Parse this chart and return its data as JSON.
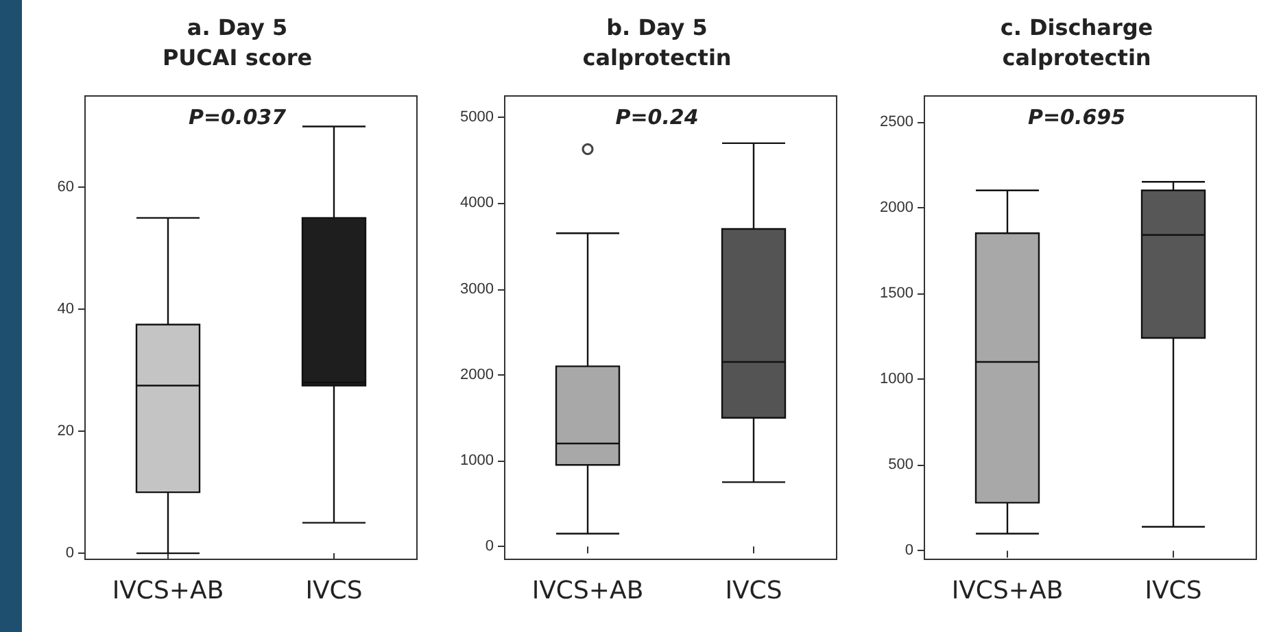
{
  "chart_data": [
    {
      "type": "box",
      "title": "a. Day 5\nPUCAI score",
      "categories": [
        "IVCS+AB",
        "IVCS"
      ],
      "colors": [
        "#c4c4c4",
        "#1e1e1e"
      ],
      "ylim": [
        -1,
        75
      ],
      "yticks": [
        0,
        20,
        40,
        60
      ],
      "grid": false,
      "annotations": [
        "P=0.037"
      ],
      "boxes": [
        {
          "low": 0,
          "q1": 10,
          "median": 27.5,
          "q3": 37.5,
          "high": 55
        },
        {
          "low": 5,
          "q1": 27.5,
          "median": 28,
          "q3": 55,
          "high": 70
        }
      ]
    },
    {
      "type": "box",
      "title": "b. Day 5\ncalprotectin",
      "categories": [
        "IVCS+AB",
        "IVCS"
      ],
      "colors": [
        "#a8a8a8",
        "#545454"
      ],
      "ylim": [
        -150,
        5250
      ],
      "yticks": [
        0,
        1000,
        2000,
        3000,
        4000,
        5000
      ],
      "grid": false,
      "annotations": [
        "P=0.24"
      ],
      "boxes": [
        {
          "low": 150,
          "q1": 950,
          "median": 1200,
          "q3": 2100,
          "high": 3650,
          "outliers": [
            4630
          ]
        },
        {
          "low": 750,
          "q1": 1500,
          "median": 2150,
          "q3": 3700,
          "high": 4700
        }
      ]
    },
    {
      "type": "box",
      "title": "c. Discharge\ncalprotectin",
      "categories": [
        "IVCS+AB",
        "IVCS"
      ],
      "colors": [
        "#a8a8a8",
        "#575757"
      ],
      "ylim": [
        -50,
        2650
      ],
      "yticks": [
        0,
        500,
        1000,
        1500,
        2000,
        2500
      ],
      "grid": false,
      "annotations": [
        "P=0.695"
      ],
      "boxes": [
        {
          "low": 100,
          "q1": 280,
          "median": 1100,
          "q3": 1850,
          "high": 2100
        },
        {
          "low": 140,
          "q1": 1240,
          "median": 1840,
          "q3": 2100,
          "high": 2150
        }
      ]
    }
  ]
}
